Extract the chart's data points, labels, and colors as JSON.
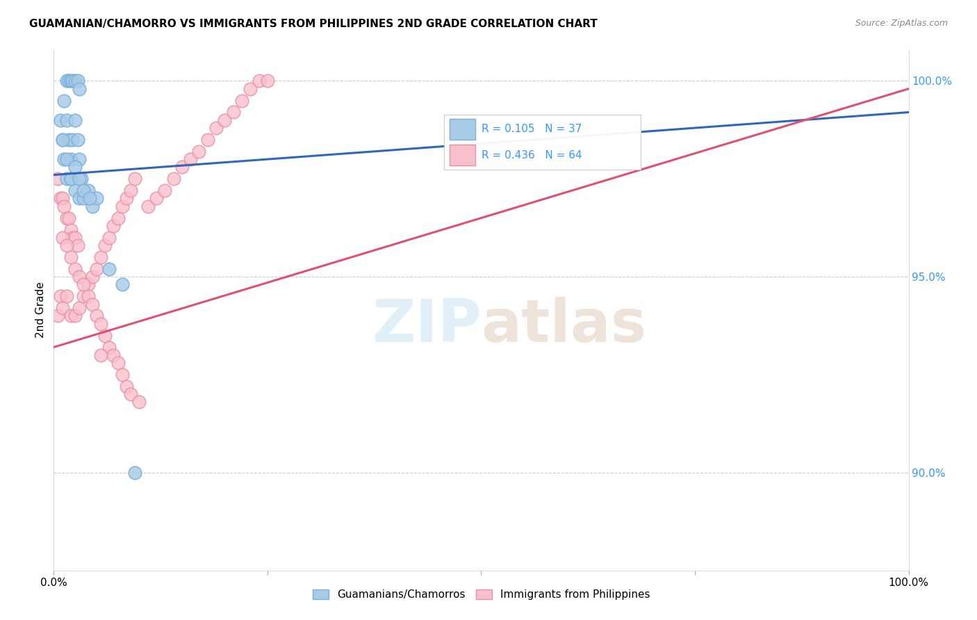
{
  "title": "GUAMANIAN/CHAMORRO VS IMMIGRANTS FROM PHILIPPINES 2ND GRADE CORRELATION CHART",
  "source": "Source: ZipAtlas.com",
  "ylabel": "2nd Grade",
  "blue_color_face": "#a8cce8",
  "blue_color_edge": "#7ab0d8",
  "pink_color_face": "#f8c0cc",
  "pink_color_edge": "#e890a8",
  "blue_line_color": "#3366bb",
  "pink_line_color": "#e05070",
  "text_blue": "#3399ff",
  "right_tick_color": "#3399ff",
  "grid_color": "#cccccc",
  "watermark_color": "#ddeef8",
  "xlim": [
    0.0,
    1.0
  ],
  "ylim": [
    0.875,
    1.008
  ],
  "yticks": [
    0.9,
    0.95,
    1.0
  ],
  "ytick_labels_right": [
    "90.0%",
    "95.0%",
    "100.0%"
  ],
  "hline_values": [
    1.0,
    0.95,
    0.9,
    0.85
  ],
  "blue_scatter_x": [
    0.008,
    0.012,
    0.015,
    0.018,
    0.02,
    0.022,
    0.025,
    0.028,
    0.03,
    0.01,
    0.015,
    0.018,
    0.02,
    0.022,
    0.025,
    0.028,
    0.03,
    0.032,
    0.012,
    0.015,
    0.02,
    0.025,
    0.03,
    0.035,
    0.04,
    0.045,
    0.05,
    0.01,
    0.015,
    0.02,
    0.025,
    0.03,
    0.035,
    0.065,
    0.08,
    0.042,
    0.095
  ],
  "blue_scatter_y": [
    0.99,
    0.995,
    1.0,
    1.0,
    1.0,
    1.0,
    1.0,
    1.0,
    0.998,
    0.985,
    0.99,
    0.985,
    0.98,
    0.985,
    0.99,
    0.985,
    0.98,
    0.975,
    0.98,
    0.975,
    0.975,
    0.972,
    0.97,
    0.97,
    0.972,
    0.968,
    0.97,
    0.985,
    0.98,
    0.975,
    0.978,
    0.975,
    0.972,
    0.952,
    0.948,
    0.97,
    0.9
  ],
  "pink_scatter_x": [
    0.005,
    0.008,
    0.01,
    0.012,
    0.015,
    0.018,
    0.02,
    0.022,
    0.025,
    0.028,
    0.005,
    0.008,
    0.01,
    0.015,
    0.02,
    0.025,
    0.03,
    0.035,
    0.04,
    0.045,
    0.05,
    0.055,
    0.06,
    0.065,
    0.07,
    0.075,
    0.08,
    0.085,
    0.09,
    0.095,
    0.01,
    0.015,
    0.02,
    0.025,
    0.03,
    0.035,
    0.04,
    0.045,
    0.05,
    0.055,
    0.06,
    0.065,
    0.07,
    0.075,
    0.08,
    0.085,
    0.09,
    0.1,
    0.11,
    0.12,
    0.13,
    0.14,
    0.15,
    0.16,
    0.17,
    0.18,
    0.19,
    0.2,
    0.21,
    0.22,
    0.23,
    0.24,
    0.25,
    0.055
  ],
  "pink_scatter_y": [
    0.975,
    0.97,
    0.97,
    0.968,
    0.965,
    0.965,
    0.962,
    0.96,
    0.96,
    0.958,
    0.94,
    0.945,
    0.942,
    0.945,
    0.94,
    0.94,
    0.942,
    0.945,
    0.948,
    0.95,
    0.952,
    0.955,
    0.958,
    0.96,
    0.963,
    0.965,
    0.968,
    0.97,
    0.972,
    0.975,
    0.96,
    0.958,
    0.955,
    0.952,
    0.95,
    0.948,
    0.945,
    0.943,
    0.94,
    0.938,
    0.935,
    0.932,
    0.93,
    0.928,
    0.925,
    0.922,
    0.92,
    0.918,
    0.968,
    0.97,
    0.972,
    0.975,
    0.978,
    0.98,
    0.982,
    0.985,
    0.988,
    0.99,
    0.992,
    0.995,
    0.998,
    1.0,
    1.0,
    0.93
  ],
  "blue_trend_x": [
    0.0,
    1.0
  ],
  "blue_trend_y": [
    0.976,
    0.992
  ],
  "pink_trend_x": [
    0.0,
    1.0
  ],
  "pink_trend_y": [
    0.932,
    0.998
  ],
  "legend_r_blue": "0.105",
  "legend_n_blue": "37",
  "legend_r_pink": "0.436",
  "legend_n_pink": "64",
  "legend_label_blue": "Guamanians/Chamorros",
  "legend_label_pink": "Immigrants from Philippines",
  "scatter_size": 180
}
